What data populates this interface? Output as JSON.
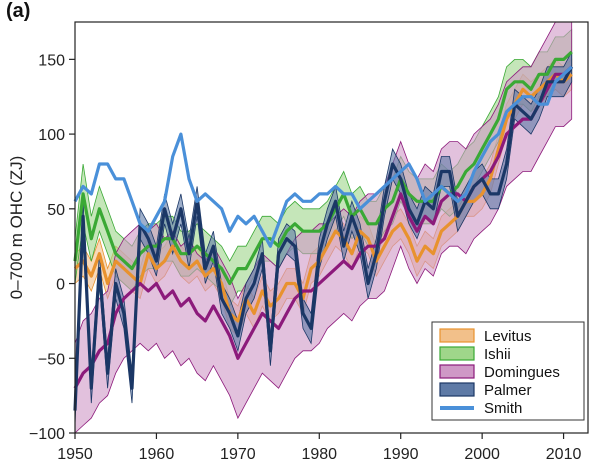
{
  "panel_label": "(a)",
  "chart_data": {
    "type": "line",
    "title": "",
    "xlabel": "",
    "ylabel": "0–700 m OHC (ZJ)",
    "xlim": [
      1950,
      2013
    ],
    "ylim": [
      -100,
      175
    ],
    "xticks": [
      1950,
      1960,
      1970,
      1980,
      1990,
      2000,
      2010
    ],
    "xtick_labels": [
      "1950",
      "1960",
      "1970",
      "1980",
      "1990",
      "2000",
      "2010"
    ],
    "yticks": [
      -100,
      -50,
      0,
      50,
      100,
      150
    ],
    "ytick_labels": [
      "−100",
      "−50",
      "0",
      "50",
      "100",
      "150"
    ],
    "grid": false,
    "legend_position": "bottom-right",
    "x": [
      1950,
      1951,
      1952,
      1953,
      1954,
      1955,
      1956,
      1957,
      1958,
      1959,
      1960,
      1961,
      1962,
      1963,
      1964,
      1965,
      1966,
      1967,
      1968,
      1969,
      1970,
      1971,
      1972,
      1973,
      1974,
      1975,
      1976,
      1977,
      1978,
      1979,
      1980,
      1981,
      1982,
      1983,
      1984,
      1985,
      1986,
      1987,
      1988,
      1989,
      1990,
      1991,
      1992,
      1993,
      1994,
      1995,
      1996,
      1997,
      1998,
      1999,
      2000,
      2001,
      2002,
      2003,
      2004,
      2005,
      2006,
      2007,
      2008,
      2009,
      2010,
      2011
    ],
    "series": [
      {
        "name": "Levitus",
        "color": "#e8922e",
        "fill": "#f2c08a",
        "values": [
          10,
          15,
          5,
          20,
          0,
          15,
          10,
          5,
          0,
          20,
          10,
          15,
          25,
          15,
          10,
          15,
          5,
          10,
          0,
          -20,
          -25,
          -10,
          -20,
          -5,
          -15,
          -10,
          0,
          0,
          -10,
          10,
          15,
          25,
          35,
          30,
          20,
          35,
          30,
          15,
          25,
          35,
          40,
          30,
          15,
          25,
          20,
          35,
          40,
          45,
          55,
          55,
          60,
          70,
          90,
          110,
          120,
          130,
          125,
          130,
          135,
          140,
          135,
          140
        ],
        "lower": [
          0,
          5,
          -5,
          10,
          -10,
          5,
          0,
          -5,
          -10,
          10,
          0,
          5,
          15,
          5,
          0,
          5,
          -5,
          0,
          -10,
          -30,
          -35,
          -20,
          -30,
          -15,
          -25,
          -20,
          -10,
          -10,
          -20,
          0,
          5,
          15,
          25,
          20,
          10,
          25,
          20,
          5,
          15,
          25,
          30,
          20,
          5,
          15,
          10,
          25,
          30,
          35,
          45,
          45,
          50,
          60,
          80,
          100,
          110,
          120,
          115,
          120,
          125,
          130,
          125,
          130
        ],
        "upper": [
          20,
          25,
          15,
          30,
          10,
          25,
          20,
          15,
          10,
          30,
          20,
          25,
          35,
          25,
          20,
          25,
          15,
          20,
          10,
          -10,
          -15,
          0,
          -10,
          5,
          -5,
          0,
          10,
          10,
          0,
          20,
          25,
          35,
          45,
          40,
          30,
          45,
          40,
          25,
          35,
          45,
          50,
          40,
          25,
          35,
          30,
          45,
          50,
          55,
          65,
          65,
          70,
          80,
          100,
          120,
          130,
          140,
          135,
          140,
          145,
          150,
          145,
          150
        ]
      },
      {
        "name": "Ishii",
        "color": "#3aa935",
        "fill": "#9fd68a",
        "values": [
          15,
          60,
          30,
          50,
          35,
          20,
          15,
          10,
          20,
          25,
          25,
          30,
          30,
          20,
          20,
          25,
          20,
          15,
          10,
          0,
          10,
          10,
          20,
          30,
          30,
          25,
          35,
          40,
          35,
          35,
          35,
          40,
          50,
          60,
          45,
          50,
          40,
          40,
          50,
          55,
          70,
          60,
          55,
          55,
          55,
          65,
          60,
          65,
          75,
          80,
          90,
          100,
          110,
          130,
          135,
          135,
          130,
          140,
          140,
          150,
          150,
          155
        ],
        "lower": [
          0,
          40,
          15,
          35,
          20,
          5,
          0,
          -5,
          5,
          10,
          10,
          15,
          15,
          5,
          5,
          10,
          5,
          0,
          -5,
          -15,
          -5,
          -5,
          5,
          15,
          15,
          10,
          20,
          25,
          20,
          20,
          20,
          25,
          35,
          45,
          30,
          35,
          25,
          25,
          35,
          40,
          55,
          45,
          40,
          40,
          40,
          50,
          45,
          50,
          60,
          65,
          75,
          85,
          95,
          115,
          120,
          120,
          115,
          125,
          125,
          135,
          135,
          140
        ],
        "upper": [
          30,
          80,
          45,
          65,
          50,
          35,
          30,
          25,
          35,
          40,
          40,
          45,
          45,
          35,
          35,
          40,
          35,
          30,
          25,
          15,
          25,
          25,
          35,
          45,
          45,
          40,
          50,
          55,
          50,
          50,
          50,
          55,
          65,
          75,
          60,
          65,
          55,
          55,
          65,
          70,
          85,
          75,
          70,
          70,
          70,
          80,
          75,
          80,
          90,
          95,
          105,
          115,
          125,
          145,
          150,
          150,
          145,
          155,
          155,
          165,
          165,
          170
        ]
      },
      {
        "name": "Domingues",
        "color": "#8c1a7b",
        "fill": "#cf98c6",
        "values": [
          -70,
          -60,
          -55,
          -45,
          -40,
          -20,
          -10,
          -5,
          0,
          -5,
          0,
          -10,
          -5,
          -15,
          -10,
          -20,
          -25,
          -15,
          -25,
          -35,
          -50,
          -40,
          -30,
          -20,
          -25,
          -30,
          -20,
          -10,
          -5,
          -5,
          0,
          5,
          10,
          15,
          10,
          20,
          25,
          25,
          30,
          45,
          60,
          45,
          35,
          45,
          40,
          55,
          60,
          60,
          55,
          65,
          70,
          75,
          85,
          100,
          105,
          110,
          110,
          120,
          130,
          140,
          140,
          145
        ],
        "lower": [
          -100,
          -95,
          -90,
          -80,
          -75,
          -60,
          -50,
          -45,
          -40,
          -45,
          -40,
          -50,
          -45,
          -55,
          -50,
          -60,
          -65,
          -55,
          -65,
          -75,
          -90,
          -80,
          -70,
          -60,
          -65,
          -70,
          -60,
          -50,
          -45,
          -45,
          -40,
          -30,
          -25,
          -20,
          -25,
          -15,
          -10,
          -10,
          -5,
          10,
          25,
          10,
          0,
          10,
          5,
          20,
          25,
          25,
          20,
          30,
          35,
          40,
          50,
          65,
          70,
          75,
          75,
          85,
          95,
          105,
          105,
          110
        ],
        "upper": [
          -40,
          -25,
          -20,
          -10,
          -5,
          20,
          30,
          35,
          40,
          35,
          40,
          30,
          35,
          25,
          30,
          20,
          15,
          25,
          15,
          5,
          -10,
          0,
          10,
          20,
          15,
          10,
          20,
          30,
          35,
          35,
          40,
          40,
          45,
          50,
          45,
          55,
          60,
          60,
          65,
          80,
          95,
          80,
          70,
          80,
          75,
          90,
          95,
          95,
          90,
          100,
          105,
          110,
          120,
          135,
          140,
          145,
          145,
          155,
          165,
          175,
          175,
          180
        ]
      },
      {
        "name": "Palmer",
        "color": "#1b3766",
        "fill": "#5e7aa6",
        "values": [
          -85,
          45,
          -70,
          10,
          -60,
          0,
          -20,
          -70,
          40,
          30,
          15,
          50,
          30,
          50,
          20,
          55,
          10,
          25,
          -10,
          -20,
          -35,
          -10,
          0,
          20,
          -45,
          20,
          30,
          25,
          -20,
          -30,
          20,
          40,
          55,
          25,
          45,
          30,
          0,
          20,
          55,
          80,
          70,
          50,
          40,
          55,
          50,
          75,
          75,
          45,
          55,
          65,
          70,
          60,
          60,
          80,
          120,
          115,
          110,
          120,
          135,
          135,
          135,
          145
        ],
        "lower": [
          -95,
          35,
          -80,
          0,
          -70,
          -10,
          -30,
          -80,
          30,
          20,
          5,
          40,
          20,
          40,
          10,
          45,
          0,
          15,
          -20,
          -30,
          -45,
          -20,
          -10,
          10,
          -55,
          10,
          20,
          15,
          -30,
          -40,
          10,
          30,
          45,
          15,
          35,
          20,
          -10,
          10,
          45,
          70,
          60,
          40,
          30,
          45,
          40,
          65,
          65,
          35,
          45,
          55,
          60,
          50,
          50,
          70,
          110,
          105,
          100,
          110,
          125,
          125,
          125,
          135
        ],
        "upper": [
          -75,
          55,
          -60,
          20,
          -50,
          10,
          -10,
          -60,
          50,
          40,
          25,
          60,
          40,
          60,
          30,
          65,
          20,
          35,
          0,
          -10,
          -25,
          0,
          10,
          30,
          -35,
          30,
          40,
          35,
          -10,
          -20,
          30,
          50,
          65,
          35,
          55,
          40,
          10,
          30,
          65,
          90,
          80,
          60,
          50,
          65,
          60,
          85,
          85,
          55,
          65,
          75,
          80,
          70,
          70,
          90,
          130,
          125,
          120,
          130,
          145,
          145,
          145,
          155
        ]
      },
      {
        "name": "Smith",
        "color": "#4a90d9",
        "values": [
          55,
          65,
          60,
          80,
          80,
          70,
          70,
          55,
          40,
          35,
          45,
          55,
          85,
          100,
          70,
          55,
          60,
          55,
          50,
          35,
          45,
          40,
          45,
          35,
          25,
          40,
          55,
          60,
          55,
          55,
          60,
          60,
          65,
          60,
          60,
          50,
          55,
          60,
          65,
          70,
          75,
          80,
          70,
          55,
          60,
          65,
          60,
          55,
          60,
          75,
          85,
          95,
          100,
          115,
          120,
          125,
          125,
          120,
          120,
          135,
          140,
          145
        ]
      }
    ]
  }
}
